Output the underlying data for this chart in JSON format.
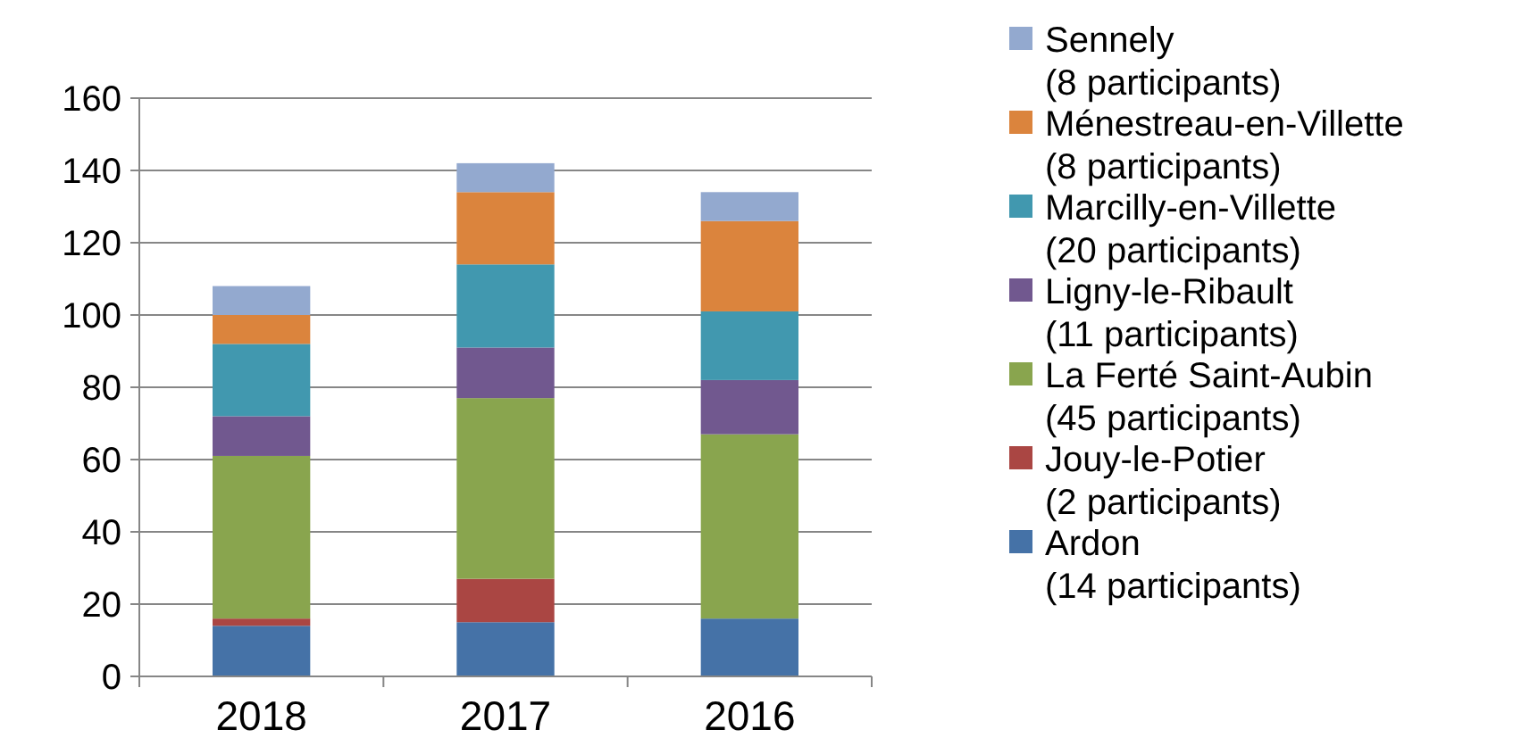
{
  "chart_data": {
    "type": "bar",
    "stacked": true,
    "categories": [
      "2018",
      "2017",
      "2016"
    ],
    "series": [
      {
        "name": "Ardon\n(14 participants)",
        "color": "#4572a7",
        "values": [
          14,
          15,
          16
        ]
      },
      {
        "name": "Jouy-le-Potier\n(2 participants)",
        "color": "#aa4643",
        "values": [
          2,
          12,
          0
        ]
      },
      {
        "name": "La Ferté Saint-Aubin\n(45 participants)",
        "color": "#89a54e",
        "values": [
          45,
          50,
          51
        ]
      },
      {
        "name": "Ligny-le-Ribault\n(11 participants)",
        "color": "#71588f",
        "values": [
          11,
          14,
          15
        ]
      },
      {
        "name": "Marcilly-en-Villette\n(20 participants)",
        "color": "#4198af",
        "values": [
          20,
          23,
          19
        ]
      },
      {
        "name": "Ménestreau-en-Villette\n(8 participants)",
        "color": "#db843d",
        "values": [
          8,
          20,
          25
        ]
      },
      {
        "name": "Sennely\n(8 participants)",
        "color": "#93a9cf",
        "values": [
          8,
          8,
          8
        ]
      }
    ],
    "ylim": [
      0,
      160
    ],
    "yticks": [
      0,
      20,
      40,
      60,
      80,
      100,
      120,
      140,
      160
    ],
    "grid": "y",
    "legend": "right"
  }
}
